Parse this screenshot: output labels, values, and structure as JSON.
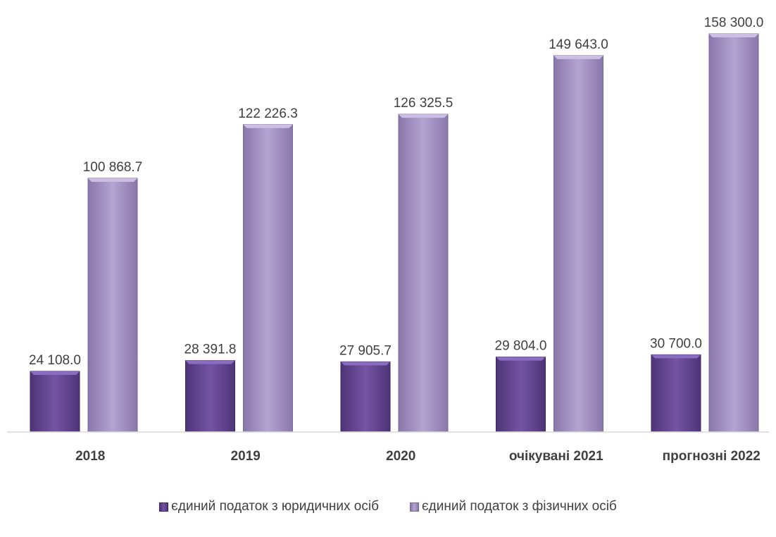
{
  "chart_data": {
    "type": "bar",
    "categories": [
      "2018",
      "2019",
      "2020",
      "очікувані 2021",
      "прогнозні 2022"
    ],
    "series": [
      {
        "name": "єдиний податок з юридичних осіб",
        "values": [
          24108.0,
          28391.8,
          27905.7,
          29804.0,
          30700.0
        ],
        "labels": [
          "24 108.0",
          "28 391.8",
          "27 905.7",
          "29 804.0",
          "30 700.0"
        ],
        "color": "#6a4c93"
      },
      {
        "name": "єдиний податок з фізичних осіб",
        "values": [
          100868.7,
          122226.3,
          126325.5,
          149643.0,
          158300.0
        ],
        "labels": [
          "100 868.7",
          "122 226.3",
          "126 325.5",
          "149 643.0",
          "158 300.0"
        ],
        "color": "#9d8bc0"
      }
    ],
    "grid": false,
    "legend_position": "bottom"
  }
}
